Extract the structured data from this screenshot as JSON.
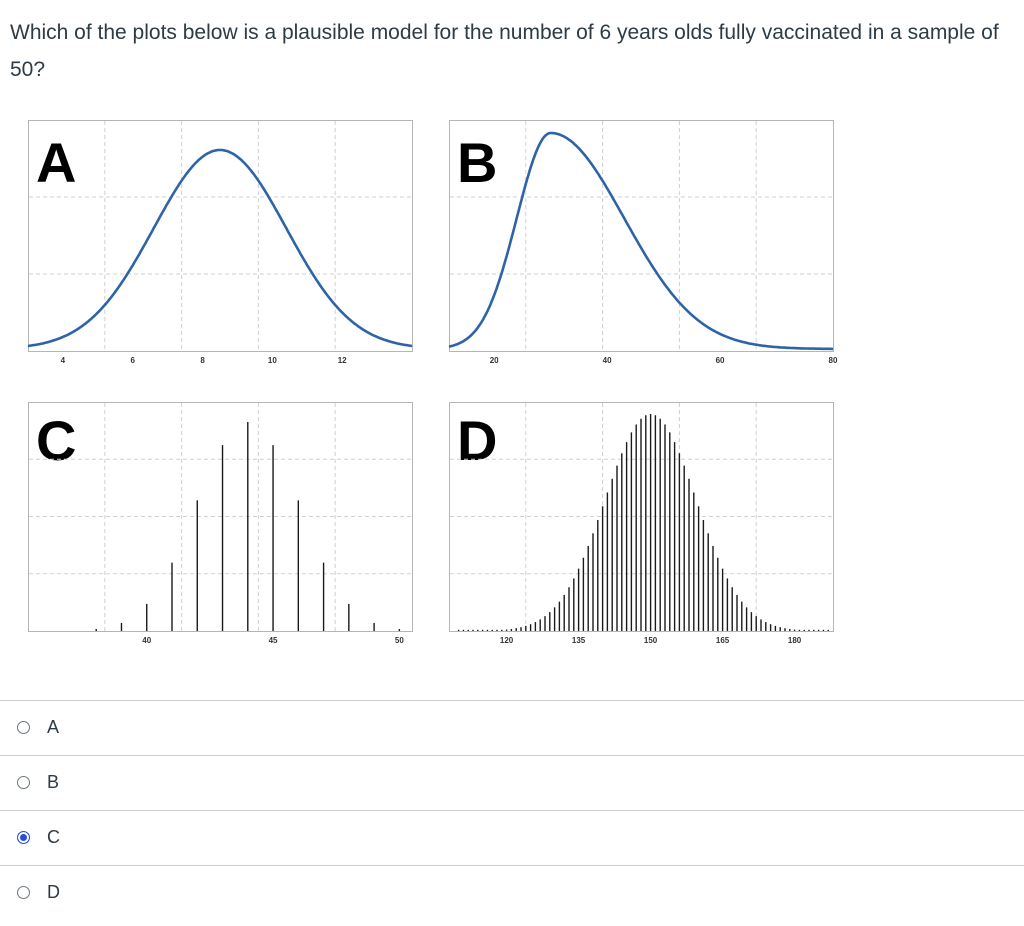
{
  "question": {
    "text": "Which of the plots below is a plausible model for the number of 6 years olds fully vaccinated in a sample of 50?"
  },
  "panels": {
    "A": {
      "letter": "A",
      "ticks": [
        "4",
        "6",
        "8",
        "10",
        "12"
      ]
    },
    "B": {
      "letter": "B",
      "ticks": [
        "20",
        "40",
        "60",
        "80"
      ]
    },
    "C": {
      "letter": "C",
      "ticks": [
        "40",
        "45",
        "50"
      ]
    },
    "D": {
      "letter": "D",
      "ticks": [
        "120",
        "135",
        "150",
        "165",
        "180"
      ]
    }
  },
  "options": [
    {
      "label": "A",
      "selected": false
    },
    {
      "label": "B",
      "selected": false
    },
    {
      "label": "C",
      "selected": true
    },
    {
      "label": "D",
      "selected": false
    }
  ],
  "chart_data": [
    {
      "type": "line",
      "panel": "A",
      "x_ticks": [
        4,
        6,
        8,
        10,
        12
      ],
      "xlim": [
        3,
        14
      ],
      "curve": "normal",
      "mean": 8.5,
      "sd": 1.9
    },
    {
      "type": "line",
      "panel": "B",
      "x_ticks": [
        20,
        40,
        60,
        80
      ],
      "xlim": [
        12,
        80
      ],
      "curve": "right-skewed",
      "mode": 30
    },
    {
      "type": "bar",
      "panel": "C",
      "x_ticks": [
        40,
        45,
        50
      ],
      "xlim": [
        35.3,
        50.5
      ],
      "categories": [
        38,
        39,
        40,
        41,
        42,
        43,
        44,
        45,
        46,
        47,
        48,
        49,
        50
      ],
      "values": [
        0.002,
        0.008,
        0.027,
        0.068,
        0.13,
        0.185,
        0.208,
        0.185,
        0.13,
        0.068,
        0.027,
        0.008,
        0.002
      ]
    },
    {
      "type": "bar",
      "panel": "D",
      "x_ticks": [
        120,
        135,
        150,
        165,
        180
      ],
      "xlim": [
        108,
        188
      ],
      "curve": "normal-discrete",
      "mean": 150,
      "sd": 9.5
    }
  ]
}
